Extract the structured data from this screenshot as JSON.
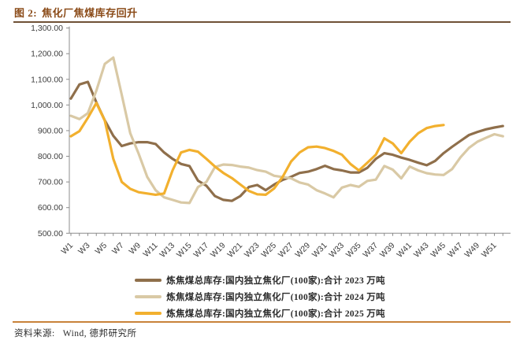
{
  "title": {
    "prefix": "图 2:",
    "text": "焦化厂焦煤库存回升"
  },
  "source": {
    "label": "资料来源:",
    "text": "Wind, 德邦研究所"
  },
  "colors": {
    "title_text": "#8a4a17",
    "top_rule": "#6f5136",
    "bottom_rule": "#c8823a",
    "axis": "#8c8c8c",
    "tick_text": "#3d3d3d",
    "series_2023": "#8f6f4b",
    "series_2024": "#d9c9a5",
    "series_2025": "#f2b02e"
  },
  "chart_data": {
    "type": "line",
    "title": "焦化厂焦煤库存回升",
    "xlabel": "",
    "ylabel": "",
    "ylim": [
      500,
      1300
    ],
    "grid": false,
    "legend_position": "bottom",
    "x_weeks": 52,
    "x_label_ticks": [
      "W1",
      "W3",
      "W5",
      "W7",
      "W9",
      "W11",
      "W13",
      "W15",
      "W17",
      "W19",
      "W21",
      "W23",
      "W25",
      "W27",
      "W29",
      "W31",
      "W33",
      "W35",
      "W37",
      "W39",
      "W41",
      "W43",
      "W45",
      "W47",
      "W49",
      "W51"
    ],
    "y_tick_labels": [
      "1,300.00",
      "1,200.00",
      "1,100.00",
      "1,000.00",
      "900.00",
      "800.00",
      "700.00",
      "600.00",
      "500.00"
    ],
    "y_tick_values": [
      1300,
      1200,
      1100,
      1000,
      900,
      800,
      700,
      600,
      500
    ],
    "series": [
      {
        "name": "炼焦煤总库存:国内独立焦化厂(100家):合计 2023 万吨",
        "color": "#8f6f4b",
        "values": [
          1025,
          1080,
          1090,
          1010,
          940,
          880,
          840,
          850,
          855,
          855,
          848,
          815,
          790,
          770,
          762,
          705,
          685,
          645,
          630,
          626,
          645,
          680,
          688,
          668,
          690,
          708,
          720,
          735,
          740,
          750,
          763,
          750,
          745,
          737,
          737,
          755,
          790,
          812,
          806,
          795,
          786,
          775,
          765,
          782,
          812,
          837,
          860,
          883,
          895,
          905,
          912,
          918
        ]
      },
      {
        "name": "炼焦煤总库存:国内独立焦化厂(100家):合计 2024 万吨",
        "color": "#d9c9a5",
        "values": [
          958,
          945,
          968,
          1056,
          1160,
          1185,
          1040,
          890,
          810,
          720,
          668,
          640,
          630,
          620,
          618,
          680,
          700,
          758,
          768,
          766,
          760,
          756,
          746,
          740,
          724,
          719,
          714,
          698,
          690,
          668,
          655,
          640,
          678,
          688,
          681,
          704,
          709,
          762,
          748,
          714,
          760,
          745,
          734,
          729,
          727,
          750,
          796,
          833,
          857,
          872,
          886,
          878
        ]
      },
      {
        "name": "炼焦煤总库存:国内独立焦化厂(100家):合计 2025 万吨",
        "color": "#f2b02e",
        "values": [
          878,
          898,
          950,
          1008,
          939,
          790,
          700,
          673,
          660,
          655,
          650,
          655,
          745,
          815,
          825,
          818,
          790,
          760,
          735,
          715,
          690,
          665,
          652,
          650,
          675,
          720,
          780,
          815,
          835,
          838,
          832,
          821,
          806,
          770,
          745,
          775,
          806,
          870,
          850,
          812,
          857,
          890,
          910,
          918,
          922
        ]
      }
    ]
  }
}
